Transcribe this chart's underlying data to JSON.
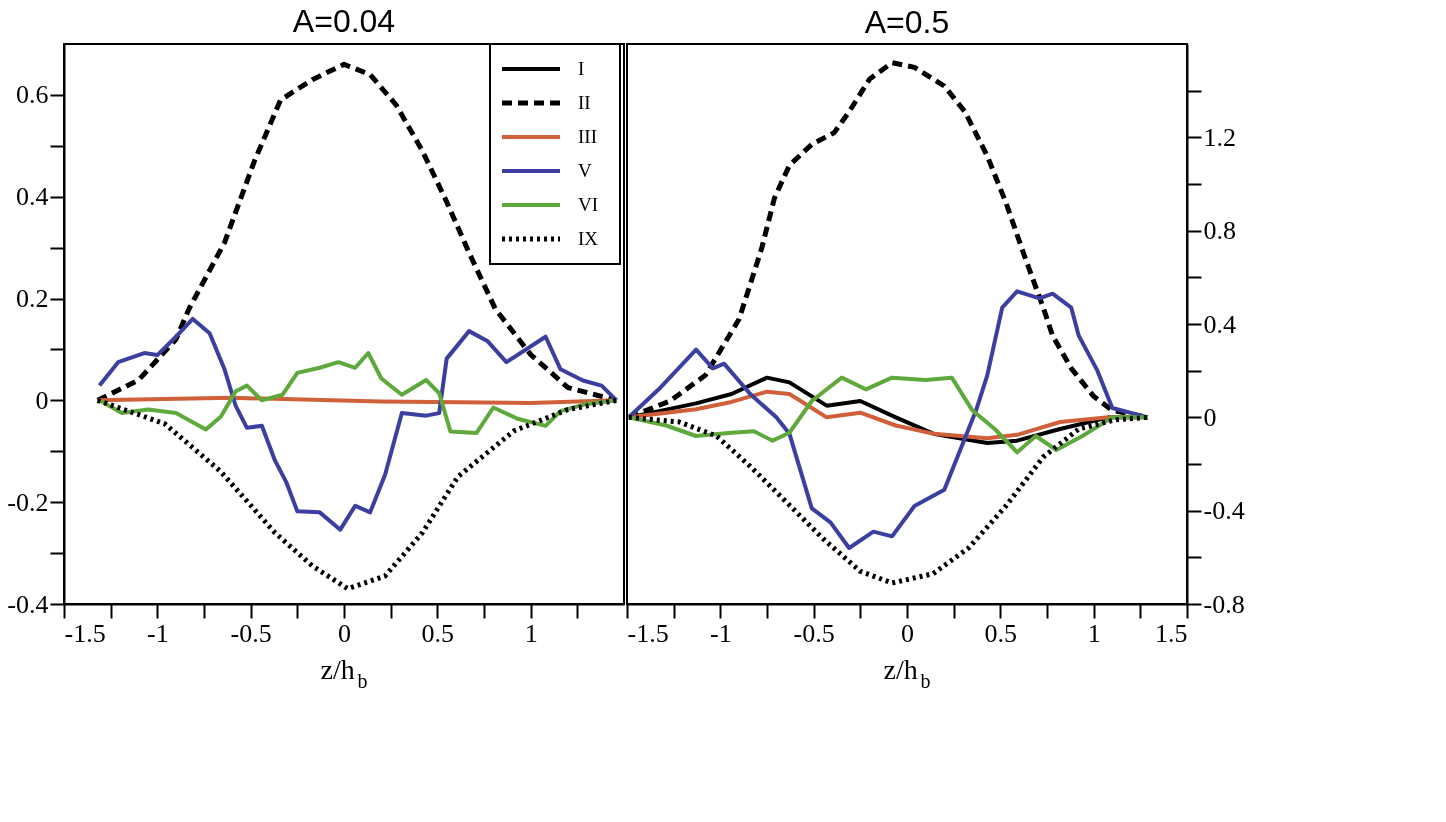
{
  "chart_data": [
    {
      "type": "line",
      "title": "A=0.04",
      "xlabel": "z/h$_{b}$",
      "legend": "top right",
      "grid": false,
      "xlim": [
        -1.5,
        1.5
      ],
      "ylim": [
        -0.4,
        0.7
      ],
      "xticks": [
        -1.5,
        {
          "value": -1.25,
          "label": null
        },
        -1,
        {
          "value": -0.75,
          "label": null
        },
        -0.5,
        {
          "value": -0.25,
          "label": null
        },
        0,
        {
          "value": 0.25,
          "label": null
        },
        0.5,
        {
          "value": 0.75,
          "label": null
        },
        1,
        {
          "value": 1.25,
          "label": null
        }
      ],
      "yticks": [
        -0.4,
        {
          "value": -0.3,
          "label": null
        },
        -0.2,
        {
          "value": -0.1,
          "label": null
        },
        0,
        {
          "value": 0.1,
          "label": null
        },
        0.2,
        {
          "value": 0.3,
          "label": null
        },
        0.4,
        {
          "value": 0.5,
          "label": null
        },
        0.6
      ],
      "series": [
        {
          "name": "I",
          "color": "#000000",
          "line_style": "solid"
        },
        {
          "name": "II",
          "color": "#000000",
          "line_style": "dashed",
          "x": [
            -1.32,
            -1.1,
            -0.9,
            -0.83,
            -0.64,
            -0.48,
            -0.34,
            -0.17,
            0,
            0.14,
            0.28,
            0.42,
            0.55,
            0.67,
            0.81,
            1.0,
            1.2,
            1.46
          ],
          "values": [
            0,
            0.04,
            0.12,
            0.18,
            0.31,
            0.47,
            0.59,
            0.63,
            0.66,
            0.64,
            0.58,
            0.49,
            0.39,
            0.29,
            0.18,
            0.09,
            0.025,
            0
          ]
        },
        {
          "name": "III",
          "color": "#d0603a",
          "line_style": "solid",
          "x": [
            -1.32,
            -0.6,
            0.2,
            1.0,
            1.46
          ],
          "values": [
            0,
            0.005,
            -0.002,
            -0.005,
            0
          ]
        },
        {
          "name": "V",
          "color": "#3a3fa0",
          "line_style": "solid",
          "x": [
            -1.31,
            -1.21,
            -1.07,
            -1.0,
            -0.9,
            -0.81,
            -0.72,
            -0.64,
            -0.58,
            -0.52,
            -0.44,
            -0.37,
            -0.31,
            -0.25,
            -0.13,
            -0.02,
            0.06,
            0.14,
            0.22,
            0.31,
            0.44,
            0.51,
            0.55,
            0.67,
            0.77,
            0.87,
            1.08,
            1.16,
            1.28,
            1.38,
            1.46
          ],
          "values": [
            0.029,
            0.075,
            0.093,
            0.089,
            0.125,
            0.16,
            0.132,
            0.061,
            -0.011,
            -0.054,
            -0.05,
            -0.118,
            -0.16,
            -0.218,
            -0.22,
            -0.254,
            -0.207,
            -0.22,
            -0.146,
            -0.025,
            -0.03,
            -0.025,
            0.082,
            0.136,
            0.116,
            0.075,
            0.125,
            0.061,
            0.039,
            0.029,
            0
          ]
        },
        {
          "name": "VI",
          "color": "#5fa83c",
          "line_style": "solid",
          "x": [
            -1.31,
            -1.19,
            -1.05,
            -0.9,
            -0.74,
            -0.66,
            -0.58,
            -0.52,
            -0.44,
            -0.33,
            -0.25,
            -0.13,
            -0.03,
            0.06,
            0.13,
            0.2,
            0.31,
            0.44,
            0.51,
            0.57,
            0.71,
            0.8,
            0.93,
            1.08,
            1.16,
            1.3,
            1.46
          ],
          "values": [
            0,
            -0.025,
            -0.018,
            -0.025,
            -0.057,
            -0.032,
            0.018,
            0.029,
            0,
            0.011,
            0.054,
            0.064,
            0.075,
            0.064,
            0.093,
            0.043,
            0.011,
            0.04,
            0.014,
            -0.061,
            -0.064,
            -0.014,
            -0.036,
            -0.05,
            -0.021,
            -0.007,
            0
          ]
        },
        {
          "name": "IX",
          "color": "#000000",
          "line_style": "dotted",
          "x": [
            -1.32,
            -0.96,
            -0.66,
            -0.37,
            -0.17,
            0.02,
            0.22,
            0.42,
            0.61,
            0.91,
            1.2,
            1.46
          ],
          "values": [
            0,
            -0.046,
            -0.14,
            -0.26,
            -0.325,
            -0.37,
            -0.345,
            -0.26,
            -0.15,
            -0.06,
            -0.018,
            0
          ]
        }
      ]
    },
    {
      "type": "line",
      "title": "A=0.5",
      "xlabel": "z/h$_{b}$",
      "grid": false,
      "xlim": [
        -1.5,
        1.5
      ],
      "y2lim": [
        -0.8,
        1.6
      ],
      "xticks": [
        -1.5,
        {
          "value": -1.25,
          "label": null
        },
        -1,
        {
          "value": -0.75,
          "label": null
        },
        -0.5,
        {
          "value": -0.25,
          "label": null
        },
        0,
        {
          "value": 0.25,
          "label": null
        },
        0.5,
        {
          "value": 0.75,
          "label": null
        },
        1,
        {
          "value": 1.25,
          "label": null
        },
        1.5
      ],
      "y2ticks": [
        -0.8,
        {
          "value": -0.6,
          "label": null
        },
        -0.4,
        {
          "value": -0.2,
          "label": null
        },
        0,
        {
          "value": 0.2,
          "label": null
        },
        0.4,
        {
          "value": 0.6,
          "label": null
        },
        0.8,
        {
          "value": 1.0,
          "label": null
        },
        1.2,
        {
          "value": 1.4,
          "label": null
        }
      ],
      "series": [
        {
          "color": "#000000",
          "line_style": "solid",
          "axis": "y2",
          "x": [
            -1.49,
            -1.13,
            -0.94,
            -0.75,
            -0.63,
            -0.43,
            -0.25,
            -0.06,
            0.14,
            0.43,
            0.59,
            0.82,
            1.08,
            1.29
          ],
          "values": [
            0,
            0.06,
            0.1,
            0.17,
            0.15,
            0.05,
            0.07,
            0,
            -0.07,
            -0.11,
            -0.1,
            -0.05,
            0,
            0
          ]
        },
        {
          "color": "#000000",
          "line_style": "dashed",
          "axis": "y2",
          "x": [
            -1.49,
            -1.27,
            -1.08,
            -0.9,
            -0.78,
            -0.71,
            -0.63,
            -0.51,
            -0.39,
            -0.31,
            -0.2,
            -0.08,
            0.04,
            0.2,
            0.31,
            0.43,
            0.53,
            0.63,
            0.73,
            0.78,
            0.88,
            1.0,
            1.1,
            1.29
          ],
          "values": [
            0,
            0.07,
            0.18,
            0.42,
            0.72,
            0.94,
            1.08,
            1.17,
            1.22,
            1.31,
            1.45,
            1.52,
            1.5,
            1.42,
            1.31,
            1.12,
            0.92,
            0.69,
            0.47,
            0.35,
            0.21,
            0.09,
            0.03,
            0
          ]
        },
        {
          "color": "#d0603a",
          "line_style": "solid",
          "axis": "y2",
          "x": [
            -1.49,
            -1.13,
            -0.94,
            -0.75,
            -0.63,
            -0.43,
            -0.25,
            -0.06,
            0.14,
            0.43,
            0.59,
            0.82,
            1.08,
            1.29
          ],
          "values": [
            0,
            0.035,
            0.066,
            0.11,
            0.1,
            0,
            0.02,
            -0.035,
            -0.07,
            -0.09,
            -0.075,
            -0.02,
            0,
            0
          ]
        },
        {
          "color": "#3a3fa0",
          "line_style": "solid",
          "axis": "y2",
          "x": [
            -1.49,
            -1.33,
            -1.13,
            -1.04,
            -0.98,
            -0.84,
            -0.7,
            -0.63,
            -0.51,
            -0.41,
            -0.31,
            -0.18,
            -0.08,
            0.04,
            0.2,
            0.29,
            0.37,
            0.43,
            0.51,
            0.59,
            0.71,
            0.78,
            0.88,
            0.92,
            1.02,
            1.1,
            1.29
          ],
          "values": [
            0,
            0.12,
            0.29,
            0.21,
            0.23,
            0.1,
            0,
            -0.07,
            -0.39,
            -0.45,
            -0.56,
            -0.49,
            -0.51,
            -0.38,
            -0.31,
            -0.13,
            0.03,
            0.18,
            0.47,
            0.54,
            0.51,
            0.53,
            0.47,
            0.35,
            0.2,
            0.04,
            0
          ]
        },
        {
          "color": "#5fa83c",
          "line_style": "solid",
          "axis": "y2",
          "x": [
            -1.49,
            -1.29,
            -1.13,
            -0.94,
            -0.82,
            -0.72,
            -0.63,
            -0.51,
            -0.35,
            -0.22,
            -0.08,
            0.1,
            0.24,
            0.35,
            0.47,
            0.59,
            0.69,
            0.8,
            0.94,
            1.1,
            1.29
          ],
          "values": [
            0,
            -0.035,
            -0.08,
            -0.066,
            -0.06,
            -0.1,
            -0.066,
            0.07,
            0.17,
            0.12,
            0.17,
            0.16,
            0.17,
            0.03,
            -0.05,
            -0.15,
            -0.08,
            -0.14,
            -0.08,
            0,
            0
          ]
        },
        {
          "color": "#000000",
          "line_style": "dotted",
          "axis": "y2",
          "x": [
            -1.49,
            -1.22,
            -1.02,
            -0.84,
            -0.65,
            -0.45,
            -0.25,
            -0.08,
            0.14,
            0.33,
            0.53,
            0.73,
            0.92,
            1.12,
            1.29
          ],
          "values": [
            0,
            -0.02,
            -0.08,
            -0.21,
            -0.36,
            -0.52,
            -0.66,
            -0.71,
            -0.67,
            -0.56,
            -0.38,
            -0.17,
            -0.05,
            -0.01,
            0
          ]
        }
      ]
    }
  ]
}
